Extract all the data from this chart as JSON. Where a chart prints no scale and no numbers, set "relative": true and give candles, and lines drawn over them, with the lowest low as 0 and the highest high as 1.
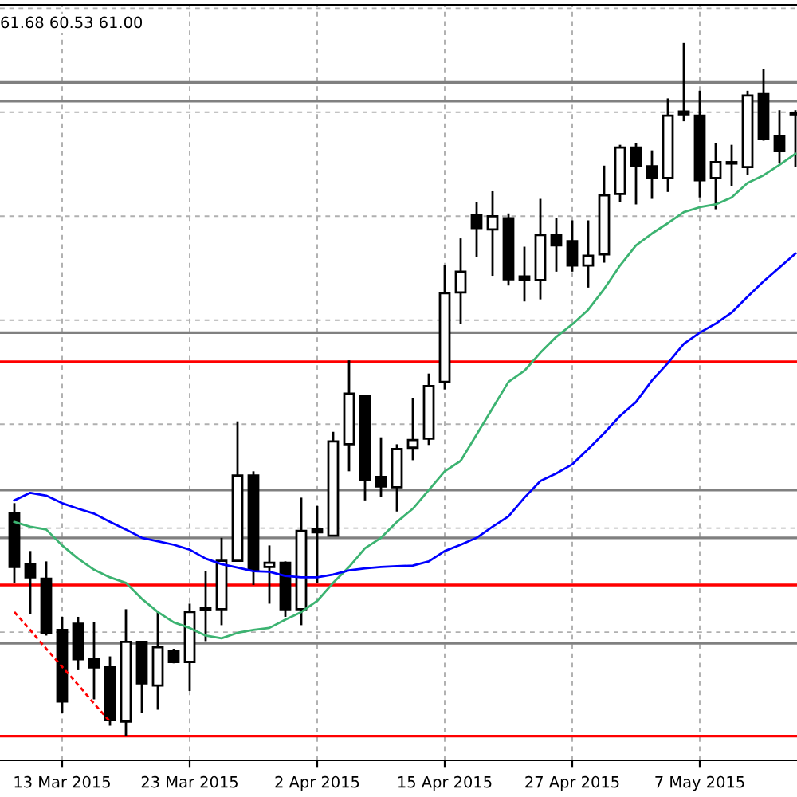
{
  "chart_data": {
    "type": "candlestick",
    "relative": true,
    "categories": [
      null,
      null,
      null,
      "13 Mar 2015",
      null,
      null,
      null,
      null,
      null,
      null,
      null,
      "23 Mar 2015",
      null,
      null,
      null,
      null,
      null,
      null,
      null,
      "2 Apr 2015",
      null,
      null,
      null,
      null,
      null,
      null,
      null,
      "15 Apr 2015",
      null,
      null,
      null,
      null,
      null,
      null,
      null,
      "27 Apr 2015",
      null,
      null,
      null,
      null,
      null,
      null,
      null,
      "7 May 2015",
      null,
      null,
      null,
      null,
      null,
      null
    ],
    "ohlc": [
      [
        0.321,
        0.336,
        0.221,
        0.244
      ],
      [
        0.248,
        0.267,
        0.176,
        0.229
      ],
      [
        0.227,
        0.252,
        0.145,
        0.149
      ],
      [
        0.153,
        0.172,
        0.034,
        0.05
      ],
      [
        0.162,
        0.172,
        0.095,
        0.111
      ],
      [
        0.111,
        0.164,
        0.053,
        0.099
      ],
      [
        0.099,
        0.115,
        0.015,
        0.023
      ],
      [
        0.021,
        0.183,
        0,
        0.136
      ],
      [
        0.136,
        0.137,
        0.034,
        0.076
      ],
      [
        0.073,
        0.179,
        0.038,
        0.128
      ],
      [
        0.122,
        0.126,
        0.105,
        0.107
      ],
      [
        0.107,
        0.191,
        0.065,
        0.179
      ],
      [
        0.182,
        0.238,
        0.137,
        0.185
      ],
      [
        0.183,
        0.286,
        0.16,
        0.253
      ],
      [
        0.253,
        0.454,
        0.252,
        0.376
      ],
      [
        0.376,
        0.382,
        0.218,
        0.24
      ],
      [
        0.244,
        0.275,
        0.191,
        0.25
      ],
      [
        0.25,
        0.252,
        0.172,
        0.183
      ],
      [
        0.183,
        0.344,
        0.16,
        0.296
      ],
      [
        0.298,
        0.332,
        0.221,
        0.294
      ],
      [
        0.289,
        0.439,
        0.289,
        0.425
      ],
      [
        0.421,
        0.542,
        0.382,
        0.494
      ],
      [
        0.491,
        0.492,
        0.34,
        0.37
      ],
      [
        0.374,
        0.431,
        0.345,
        0.36
      ],
      [
        0.359,
        0.421,
        0.324,
        0.414
      ],
      [
        0.416,
        0.487,
        0.398,
        0.427
      ],
      [
        0.429,
        0.523,
        0.42,
        0.505
      ],
      [
        0.511,
        0.679,
        0.5,
        0.639
      ],
      [
        0.64,
        0.718,
        0.594,
        0.67
      ],
      [
        0.752,
        0.771,
        0.691,
        0.733
      ],
      [
        0.731,
        0.786,
        0.664,
        0.75
      ],
      [
        0.747,
        0.754,
        0.65,
        0.659
      ],
      [
        0.663,
        0.706,
        0.627,
        0.658
      ],
      [
        0.658,
        0.775,
        0.63,
        0.723
      ],
      [
        0.723,
        0.748,
        0.67,
        0.708
      ],
      [
        0.714,
        0.744,
        0.67,
        0.679
      ],
      [
        0.679,
        0.744,
        0.647,
        0.693
      ],
      [
        0.695,
        0.823,
        0.683,
        0.78
      ],
      [
        0.782,
        0.853,
        0.771,
        0.849
      ],
      [
        0.849,
        0.855,
        0.767,
        0.822
      ],
      [
        0.822,
        0.845,
        0.775,
        0.805
      ],
      [
        0.805,
        0.92,
        0.785,
        0.895
      ],
      [
        0.901,
        1,
        0.887,
        0.897
      ],
      [
        0.895,
        0.931,
        0.777,
        0.802
      ],
      [
        0.805,
        0.855,
        0.76,
        0.828
      ],
      [
        0.826,
        0.853,
        0.794,
        0.828
      ],
      [
        0.821,
        0.931,
        0.809,
        0.924
      ],
      [
        0.926,
        0.962,
        0.859,
        0.861
      ],
      [
        0.866,
        0.903,
        0.826,
        0.844
      ],
      [
        0.897,
        0.903,
        0.821,
        0.899
      ]
    ],
    "series": [
      {
        "type": "line",
        "color": "#3cb371",
        "values": [
          0.309,
          0.302,
          0.298,
          0.275,
          0.256,
          0.24,
          0.229,
          0.221,
          0.198,
          0.179,
          0.164,
          0.156,
          0.145,
          0.141,
          0.149,
          0.153,
          0.156,
          0.168,
          0.179,
          0.195,
          0.221,
          0.244,
          0.271,
          0.286,
          0.309,
          0.328,
          0.355,
          0.382,
          0.397,
          0.435,
          0.473,
          0.511,
          0.527,
          0.553,
          0.576,
          0.594,
          0.615,
          0.645,
          0.679,
          0.708,
          0.725,
          0.74,
          0.756,
          0.763,
          0.767,
          0.777,
          0.798,
          0.809,
          0.824,
          0.84
        ]
      },
      {
        "type": "line",
        "color": "#0000ff",
        "values": [
          0.34,
          0.351,
          0.347,
          0.336,
          0.328,
          0.321,
          0.309,
          0.298,
          0.286,
          0.281,
          0.276,
          0.269,
          0.256,
          0.248,
          0.243,
          0.238,
          0.237,
          0.231,
          0.229,
          0.229,
          0.233,
          0.239,
          0.242,
          0.244,
          0.245,
          0.246,
          0.252,
          0.267,
          0.276,
          0.286,
          0.302,
          0.317,
          0.344,
          0.368,
          0.379,
          0.392,
          0.414,
          0.437,
          0.462,
          0.482,
          0.513,
          0.538,
          0.566,
          0.582,
          0.595,
          0.611,
          0.634,
          0.656,
          0.676,
          0.696
        ]
      },
      {
        "type": "line",
        "color": "#ff0000",
        "line_style": "dashed",
        "values": [
          0.179,
          0.153,
          0.126,
          0.1,
          0.074,
          0.047,
          0.021,
          null,
          null,
          null,
          null,
          null,
          null,
          null,
          null,
          null,
          null,
          null,
          null,
          null,
          null,
          null,
          null,
          null,
          null,
          null,
          null,
          null,
          null,
          null,
          null,
          null,
          null,
          null,
          null,
          null,
          null,
          null,
          null,
          null,
          null,
          null,
          null,
          null,
          null,
          null,
          null,
          null,
          null,
          null
        ]
      }
    ],
    "ref_lines": [
      {
        "axis": "y",
        "value": 0.943,
        "color": "#808080"
      },
      {
        "axis": "y",
        "value": 0.916,
        "color": "#808080"
      },
      {
        "axis": "y",
        "value": 0.582,
        "color": "#808080"
      },
      {
        "axis": "y",
        "value": 0.355,
        "color": "#808080"
      },
      {
        "axis": "y",
        "value": 0.286,
        "color": "#808080"
      },
      {
        "axis": "y",
        "value": 0.134,
        "color": "#808080"
      },
      {
        "axis": "y",
        "value": 0.54,
        "color": "#ff0000"
      },
      {
        "axis": "y",
        "value": 0.218,
        "color": "#ff0000"
      },
      {
        "axis": "y",
        "value": 0,
        "color": "#ff0000"
      }
    ],
    "grid": true,
    "annotations": [
      "61.68 60.53 61.00"
    ]
  }
}
